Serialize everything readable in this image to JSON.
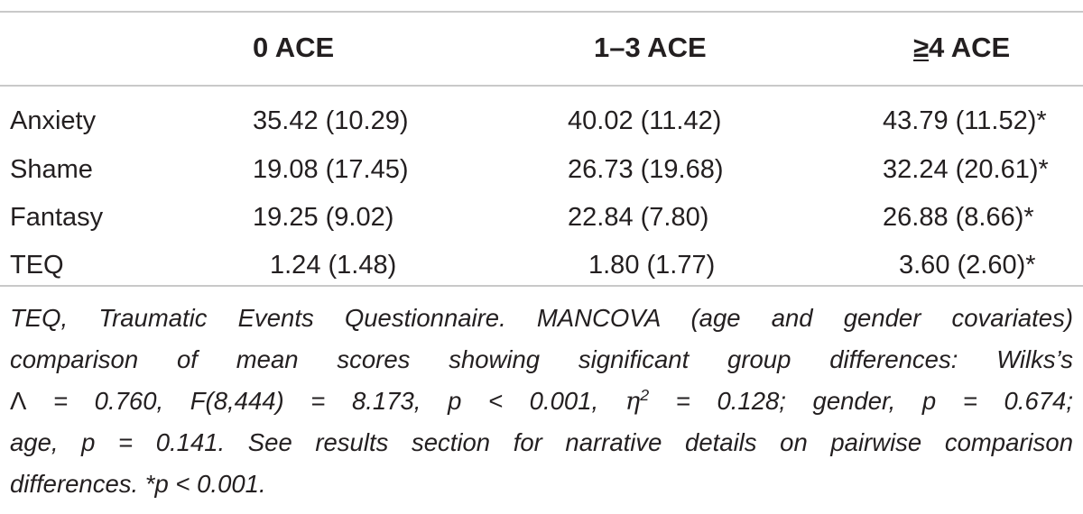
{
  "table": {
    "headers": {
      "label": "",
      "col1": "0 ACE",
      "col2": "1–3 ACE",
      "col3_sym": "≥",
      "col3_rest": "4 ACE"
    },
    "rows": [
      {
        "label": "Anxiety",
        "col1": "35.42 (10.29)",
        "col2": "40.02 (11.42)",
        "col3": "43.79 (11.52)*"
      },
      {
        "label": "Shame",
        "col1": "19.08 (17.45)",
        "col2": "26.73 (19.68)",
        "col3": "32.24 (20.61)*"
      },
      {
        "label": "Fantasy",
        "col1": "19.25 (9.02)",
        "col2": "22.84 (7.80)",
        "col3": "26.88 (8.66)*"
      },
      {
        "label": "TEQ",
        "col1": "1.24 (1.48)",
        "col2": "1.80 (1.77)",
        "col3": "3.60 (2.60)*"
      }
    ]
  },
  "footnote": {
    "line1": "TEQ, Traumatic Events Questionnaire. MANCOVA (age and gender covariates)",
    "line2": "comparison of mean scores showing significant group differences: Wilks’s",
    "line3_lambda": "Λ",
    "line3_a": " = 0.760, F(8,444) = 8.173, p < 0.001, ",
    "line3_eta": "η",
    "line3_sup": "2",
    "line3_b": " = 0.128; gender, p = 0.674;",
    "line4": "age, p = 0.141. See results section for narrative details on pairwise comparison",
    "line5": "differences. *p < 0.001."
  }
}
